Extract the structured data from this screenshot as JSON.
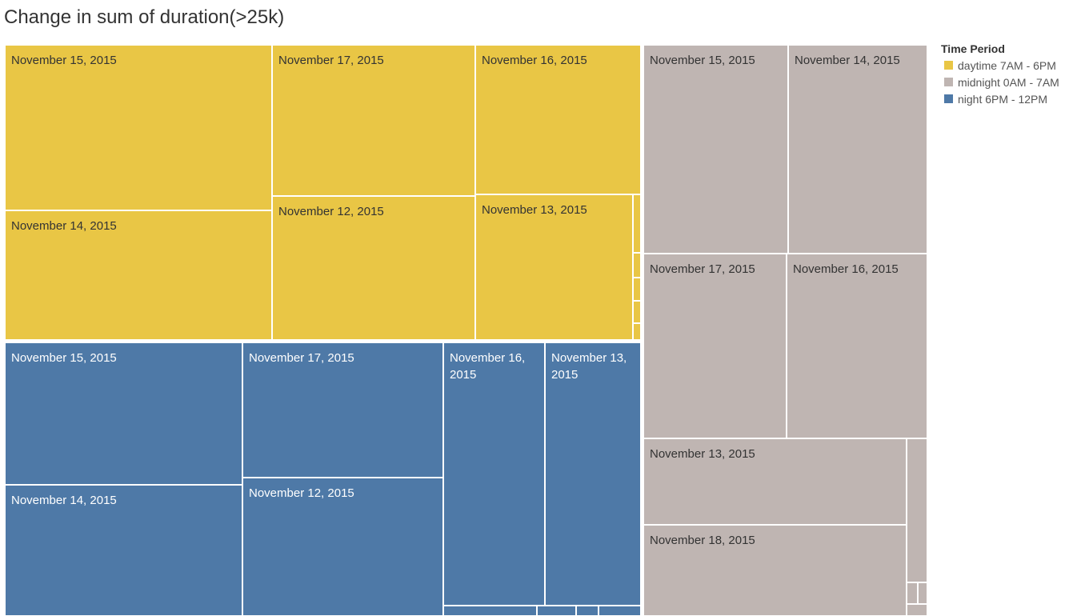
{
  "chart_data": {
    "type": "treemap",
    "title": "Change in sum of duration(>25k)",
    "legend": {
      "title": "Time Period",
      "placement": "top-right",
      "items": [
        {
          "label": "daytime 7AM - 6PM",
          "color": "#E9C645"
        },
        {
          "label": "midnight 0AM - 7AM",
          "color": "#BFB5B2"
        },
        {
          "label": "night 6PM - 12PM",
          "color": "#4E79A7"
        }
      ]
    },
    "groups": [
      {
        "name": "daytime 7AM - 6PM",
        "color": "#E9C645",
        "label_color": "#333333",
        "cells": [
          {
            "label": "November 15, 2015",
            "relative_size": 125
          },
          {
            "label": "November 14, 2015",
            "relative_size": 54
          },
          {
            "label": "November 17, 2015",
            "relative_size": 48
          },
          {
            "label": "November 12, 2015",
            "relative_size": 46
          },
          {
            "label": "November 16, 2015",
            "relative_size": 32
          },
          {
            "label": "November 13, 2015",
            "relative_size": 27
          },
          {
            "label": "",
            "relative_size": 1
          },
          {
            "label": "",
            "relative_size": 1
          },
          {
            "label": "",
            "relative_size": 1
          },
          {
            "label": "",
            "relative_size": 1
          },
          {
            "label": "",
            "relative_size": 1
          }
        ]
      },
      {
        "name": "night 6PM - 12PM",
        "color": "#4E79A7",
        "label_color": "#ffffff",
        "cells": [
          {
            "label": "November 15, 2015",
            "relative_size": 53
          },
          {
            "label": "November 14, 2015",
            "relative_size": 47
          },
          {
            "label": "November 17, 2015",
            "relative_size": 42
          },
          {
            "label": "November 12, 2015",
            "relative_size": 42
          },
          {
            "label": "November 16, 2015",
            "relative_size": 42
          },
          {
            "label": "November 13, 2015",
            "relative_size": 38
          },
          {
            "label": "",
            "relative_size": 1
          },
          {
            "label": "",
            "relative_size": 1
          },
          {
            "label": "",
            "relative_size": 1
          },
          {
            "label": "",
            "relative_size": 1
          }
        ]
      },
      {
        "name": "midnight 0AM - 7AM",
        "color": "#BFB5B2",
        "label_color": "#333333",
        "cells": [
          {
            "label": "November 15, 2015",
            "relative_size": 47
          },
          {
            "label": "November 14, 2015",
            "relative_size": 45
          },
          {
            "label": "November 17, 2015",
            "relative_size": 41
          },
          {
            "label": "November 16, 2015",
            "relative_size": 40
          },
          {
            "label": "November 13, 2015",
            "relative_size": 36
          },
          {
            "label": "November 18, 2015",
            "relative_size": 36
          },
          {
            "label": "",
            "relative_size": 1
          },
          {
            "label": "",
            "relative_size": 1
          },
          {
            "label": "",
            "relative_size": 1
          },
          {
            "label": "",
            "relative_size": 1
          }
        ]
      }
    ]
  }
}
